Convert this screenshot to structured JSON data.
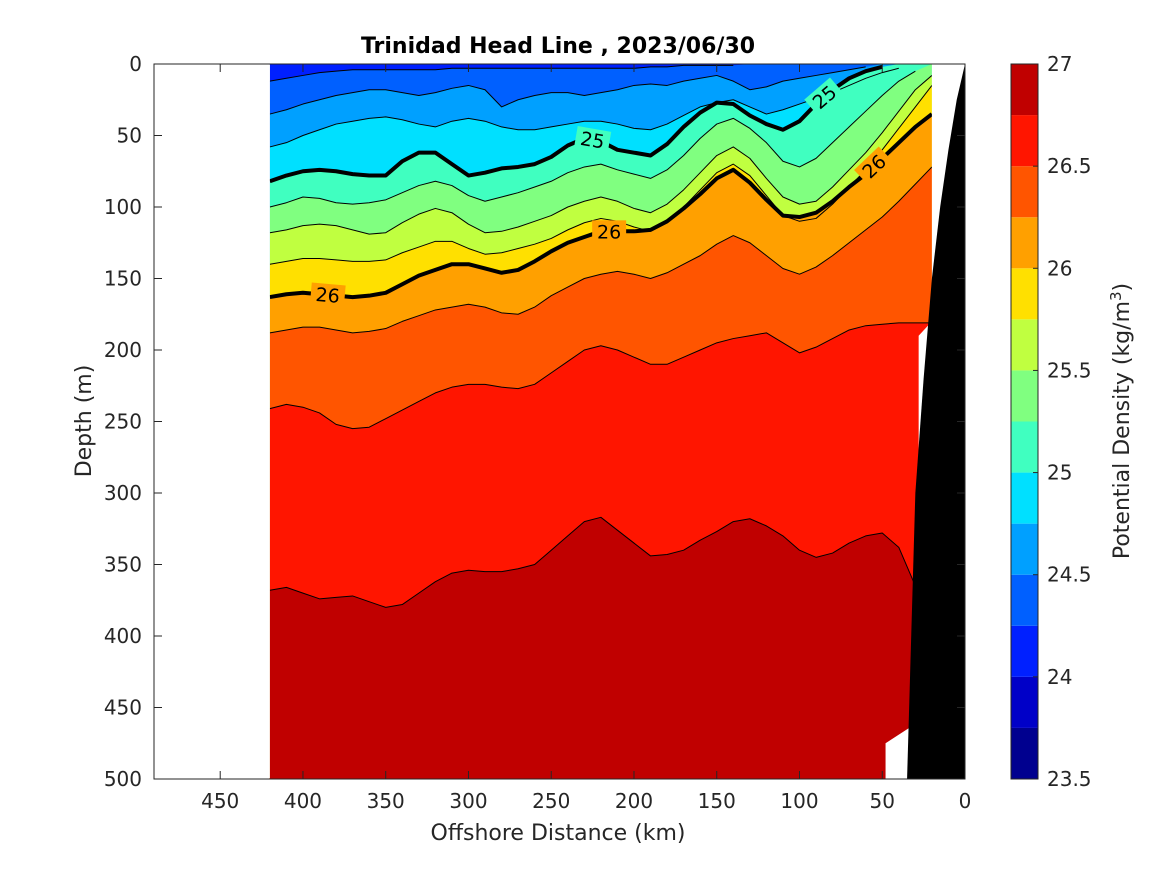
{
  "chart_data": {
    "type": "contourf",
    "title": "Trinidad Head Line , 2023/06/30",
    "xlabel": "Offshore Distance (km)",
    "ylabel": "Depth (m)",
    "colorbar_label": "Potential Density (kg/m",
    "colorbar_label_sup": "3",
    "colorbar_label_end": ")",
    "xlim": [
      490,
      0
    ],
    "ylim": [
      0,
      500
    ],
    "x_ticks": [
      450,
      400,
      350,
      300,
      250,
      200,
      150,
      100,
      50,
      0
    ],
    "x_tick_labels": [
      "450",
      "400",
      "350",
      "300",
      "250",
      "200",
      "150",
      "100",
      "50",
      "0"
    ],
    "y_ticks": [
      0,
      50,
      100,
      150,
      200,
      250,
      300,
      350,
      400,
      450,
      500
    ],
    "y_tick_labels": [
      "0",
      "50",
      "100",
      "150",
      "200",
      "250",
      "300",
      "350",
      "400",
      "450",
      "500"
    ],
    "colorbar_range": [
      23.5,
      27
    ],
    "colorbar_ticks": [
      23.5,
      24,
      24.5,
      25,
      25.5,
      26,
      26.5,
      27
    ],
    "colorbar_tick_labels": [
      "23.5",
      "24",
      "24.5",
      "25",
      "25.5",
      "26",
      "26.5",
      "27"
    ],
    "levels": [
      23.5,
      23.75,
      24,
      24.25,
      24.5,
      24.75,
      25,
      25.25,
      25.5,
      25.75,
      26,
      26.25,
      26.5,
      26.75,
      27
    ],
    "level_colors": [
      "#00008f",
      "#0000c8",
      "#0020ff",
      "#0060ff",
      "#00a0ff",
      "#00e0ff",
      "#40ffc0",
      "#80ff80",
      "#c0ff40",
      "#ffe000",
      "#ffa000",
      "#ff5500",
      "#ff1500",
      "#c00000"
    ],
    "section_x_range": [
      420,
      20
    ],
    "station_x": [
      420,
      410,
      400,
      390,
      380,
      370,
      360,
      350,
      340,
      330,
      320,
      310,
      300,
      290,
      280,
      270,
      260,
      250,
      240,
      230,
      220,
      210,
      200,
      190,
      180,
      170,
      160,
      150,
      140,
      130,
      120,
      110,
      100,
      90,
      80,
      70,
      60,
      50,
      40,
      30,
      20
    ],
    "isopycnals": [
      {
        "level": 24.25,
        "depth": [
          12,
          10,
          8,
          6,
          5,
          4,
          4,
          4,
          4,
          4,
          4,
          3,
          3,
          3,
          3,
          3,
          3,
          3,
          3,
          3,
          3,
          3,
          3,
          2,
          2,
          1,
          1,
          1,
          1,
          0,
          0,
          0,
          0,
          0,
          0,
          0,
          0,
          0,
          0,
          0,
          0
        ]
      },
      {
        "level": 24.5,
        "depth": [
          35,
          32,
          28,
          25,
          22,
          20,
          18,
          18,
          20,
          22,
          20,
          17,
          15,
          18,
          30,
          25,
          22,
          20,
          20,
          22,
          20,
          18,
          15,
          14,
          15,
          12,
          10,
          8,
          12,
          18,
          16,
          12,
          10,
          8,
          6,
          4,
          2,
          0,
          0,
          0,
          0
        ]
      },
      {
        "level": 24.75,
        "depth": [
          58,
          55,
          50,
          46,
          42,
          40,
          38,
          37,
          39,
          42,
          44,
          40,
          38,
          40,
          44,
          46,
          46,
          44,
          42,
          40,
          40,
          42,
          45,
          46,
          42,
          36,
          30,
          27,
          25,
          30,
          35,
          32,
          28,
          24,
          20,
          15,
          10,
          6,
          3,
          0,
          0
        ]
      },
      {
        "level": 25,
        "depth": [
          82,
          78,
          75,
          74,
          75,
          77,
          78,
          78,
          68,
          62,
          62,
          70,
          78,
          76,
          73,
          72,
          70,
          65,
          57,
          52,
          54,
          60,
          62,
          64,
          56,
          44,
          34,
          27,
          28,
          36,
          42,
          46,
          40,
          28,
          18,
          10,
          5,
          2,
          0,
          0,
          0
        ]
      },
      {
        "level": 25.25,
        "depth": [
          100,
          97,
          93,
          94,
          97,
          98,
          97,
          95,
          90,
          85,
          82,
          85,
          92,
          96,
          93,
          90,
          86,
          82,
          76,
          72,
          70,
          74,
          77,
          80,
          74,
          64,
          52,
          42,
          38,
          45,
          55,
          68,
          72,
          66,
          55,
          44,
          33,
          22,
          12,
          5,
          0
        ]
      },
      {
        "level": 25.5,
        "depth": [
          118,
          116,
          113,
          112,
          113,
          116,
          119,
          118,
          111,
          105,
          101,
          104,
          112,
          118,
          117,
          114,
          110,
          106,
          100,
          96,
          93,
          96,
          101,
          104,
          98,
          88,
          76,
          64,
          58,
          66,
          80,
          93,
          98,
          96,
          86,
          74,
          62,
          48,
          33,
          18,
          8
        ]
      },
      {
        "level": 25.75,
        "depth": [
          140,
          138,
          136,
          136,
          137,
          138,
          138,
          137,
          132,
          128,
          124,
          124,
          129,
          133,
          132,
          129,
          126,
          122,
          116,
          111,
          108,
          110,
          114,
          117,
          111,
          100,
          88,
          76,
          70,
          78,
          92,
          106,
          110,
          108,
          98,
          86,
          74,
          60,
          45,
          30,
          15
        ]
      },
      {
        "level": 26,
        "depth": [
          163,
          161,
          160,
          161,
          162,
          163,
          162,
          160,
          154,
          148,
          144,
          140,
          140,
          143,
          146,
          144,
          138,
          131,
          125,
          121,
          117,
          117,
          117,
          116,
          110,
          101,
          91,
          80,
          74,
          83,
          95,
          106,
          107,
          104,
          96,
          86,
          77,
          66,
          55,
          44,
          35
        ]
      },
      {
        "level": 26.25,
        "depth": [
          188,
          186,
          184,
          184,
          186,
          188,
          187,
          185,
          180,
          176,
          172,
          170,
          168,
          170,
          174,
          175,
          170,
          162,
          156,
          150,
          147,
          145,
          147,
          150,
          146,
          140,
          134,
          126,
          120,
          125,
          134,
          143,
          147,
          142,
          134,
          125,
          116,
          107,
          96,
          84,
          72
        ]
      },
      {
        "level": 26.5,
        "depth": [
          241,
          238,
          240,
          244,
          252,
          255,
          254,
          248,
          242,
          236,
          230,
          226,
          224,
          224,
          226,
          227,
          224,
          216,
          208,
          200,
          197,
          200,
          205,
          210,
          210,
          205,
          200,
          195,
          192,
          190,
          188,
          195,
          202,
          198,
          192,
          186,
          183,
          182,
          181,
          181,
          181
        ]
      },
      {
        "level": 26.75,
        "depth": [
          368,
          366,
          370,
          374,
          373,
          372,
          376,
          380,
          378,
          370,
          362,
          356,
          354,
          355,
          355,
          353,
          350,
          340,
          330,
          320,
          317,
          326,
          335,
          344,
          343,
          340,
          333,
          327,
          320,
          318,
          323,
          330,
          340,
          345,
          342,
          335,
          330,
          328,
          338,
          365,
          400
        ]
      }
    ],
    "thick_contours": [
      {
        "label": "25",
        "level": 25
      },
      {
        "label": "26",
        "level": 26
      }
    ],
    "seafloor_depth_vs_x": [
      [
        35,
        500
      ],
      [
        30,
        300
      ],
      [
        25,
        220
      ],
      [
        20,
        150
      ],
      [
        15,
        100
      ],
      [
        10,
        60
      ],
      [
        5,
        25
      ],
      [
        0,
        0
      ]
    ]
  }
}
